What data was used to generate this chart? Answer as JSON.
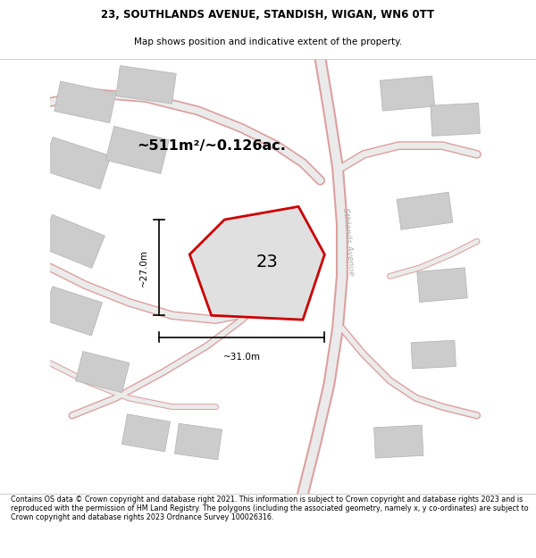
{
  "title_line1": "23, SOUTHLANDS AVENUE, STANDISH, WIGAN, WN6 0TT",
  "title_line2": "Map shows position and indicative extent of the property.",
  "footer_text": "Contains OS data © Crown copyright and database right 2021. This information is subject to Crown copyright and database rights 2023 and is reproduced with the permission of HM Land Registry. The polygons (including the associated geometry, namely x, y co-ordinates) are subject to Crown copyright and database rights 2023 Ordnance Survey 100026316.",
  "area_label": "~511m²/~0.126ac.",
  "plot_number": "23",
  "dim_width": "~31.0m",
  "dim_height": "~27.0m",
  "road_label": "Sthlands Avenue",
  "map_bg": "#f0f0f0",
  "plot_edge_color": "#cc0000",
  "plot_fill": "#e0e0e0",
  "building_fill": "#cccccc",
  "building_edge": "#b8b8b8",
  "road_outer": "#dca0a0",
  "road_inner": "#ebebeb"
}
